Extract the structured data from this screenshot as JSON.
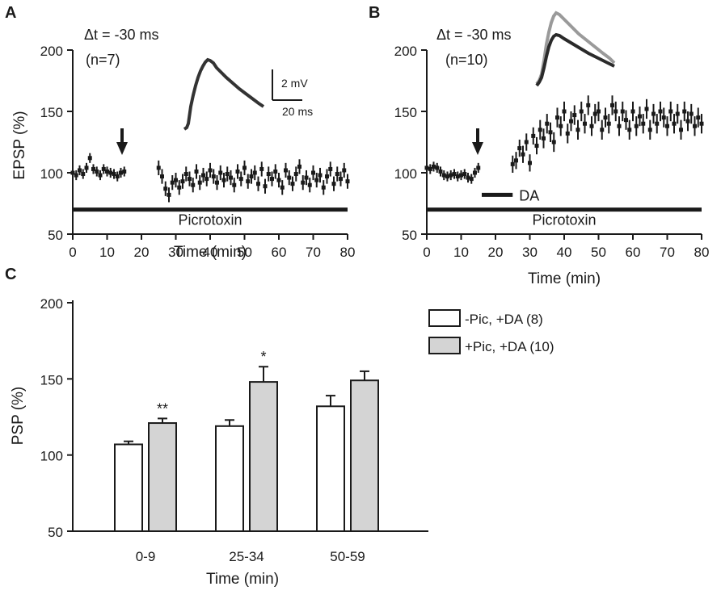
{
  "chart_data": [
    {
      "panel": "A",
      "type": "scatter",
      "title": "Δt = -30 ms",
      "subtitle": "(n=7)",
      "xlabel": "Time (min)",
      "ylabel": "EPSP (%)",
      "xlim": [
        0,
        80
      ],
      "ylim": [
        50,
        200
      ],
      "xticks": [
        0,
        10,
        20,
        30,
        40,
        50,
        60,
        70,
        80
      ],
      "yticks": [
        50,
        100,
        150,
        200
      ],
      "arrow_at_min": 15,
      "bars": [
        {
          "label": "Picrotoxin",
          "from": 0,
          "to": 80,
          "y": 70
        }
      ],
      "scalebar": {
        "v_label": "2 mV",
        "h_label": "20 ms"
      },
      "series": [
        {
          "name": "EPSP",
          "x": [
            0,
            1,
            2,
            3,
            4,
            5,
            6,
            7,
            8,
            9,
            10,
            11,
            12,
            13,
            14,
            15,
            25,
            26,
            27,
            28,
            29,
            30,
            31,
            32,
            33,
            34,
            35,
            36,
            37,
            38,
            39,
            40,
            41,
            42,
            43,
            44,
            45,
            46,
            47,
            48,
            49,
            50,
            51,
            52,
            53,
            54,
            55,
            56,
            57,
            58,
            59,
            60,
            61,
            62,
            63,
            64,
            65,
            66,
            67,
            68,
            69,
            70,
            71,
            72,
            73,
            74,
            75,
            76,
            77,
            78,
            79,
            80
          ],
          "y": [
            100,
            98,
            102,
            99,
            104,
            112,
            103,
            101,
            98,
            103,
            101,
            100,
            99,
            97,
            100,
            101,
            104,
            97,
            87,
            82,
            92,
            94,
            88,
            93,
            99,
            95,
            90,
            101,
            92,
            98,
            95,
            102,
            97,
            92,
            100,
            94,
            99,
            96,
            90,
            101,
            95,
            104,
            93,
            97,
            100,
            91,
            103,
            89,
            99,
            95,
            101,
            94,
            88,
            102,
            96,
            91,
            99,
            105,
            92,
            96,
            90,
            100,
            94,
            98,
            88,
            97,
            103,
            91,
            99,
            95,
            102,
            93
          ],
          "err": [
            4,
            4,
            4,
            4,
            4,
            4,
            4,
            4,
            4,
            4,
            4,
            4,
            4,
            4,
            4,
            4,
            6,
            6,
            6,
            6,
            6,
            6,
            6,
            6,
            6,
            6,
            6,
            6,
            6,
            6,
            6,
            6,
            6,
            6,
            6,
            6,
            6,
            6,
            6,
            6,
            6,
            6,
            6,
            6,
            6,
            6,
            6,
            6,
            6,
            6,
            6,
            6,
            6,
            6,
            6,
            6,
            6,
            6,
            6,
            6,
            6,
            6,
            6,
            6,
            6,
            6,
            6,
            6,
            6,
            6,
            6,
            6
          ]
        }
      ]
    },
    {
      "panel": "B",
      "type": "scatter",
      "title": "Δt = -30 ms",
      "subtitle": "(n=10)",
      "xlabel": "Time (min)",
      "ylabel": "",
      "xlim": [
        0,
        80
      ],
      "ylim": [
        50,
        200
      ],
      "xticks": [
        0,
        10,
        20,
        30,
        40,
        50,
        60,
        70,
        80
      ],
      "yticks": [
        50,
        100,
        150,
        200
      ],
      "arrow_at_min": 15,
      "bars": [
        {
          "label": "DA",
          "from": 16,
          "to": 25,
          "y": 82
        },
        {
          "label": "Picrotoxin",
          "from": 0,
          "to": 80,
          "y": 70
        }
      ],
      "series": [
        {
          "name": "EPSP",
          "x": [
            0,
            1,
            2,
            3,
            4,
            5,
            6,
            7,
            8,
            9,
            10,
            11,
            12,
            13,
            14,
            15,
            25,
            26,
            27,
            28,
            29,
            30,
            31,
            32,
            33,
            34,
            35,
            36,
            37,
            38,
            39,
            40,
            41,
            42,
            43,
            44,
            45,
            46,
            47,
            48,
            49,
            50,
            51,
            52,
            53,
            54,
            55,
            56,
            57,
            58,
            59,
            60,
            61,
            62,
            63,
            64,
            65,
            66,
            67,
            68,
            69,
            70,
            71,
            72,
            73,
            74,
            75,
            76,
            77,
            78,
            79,
            80
          ],
          "y": [
            104,
            103,
            105,
            104,
            101,
            98,
            97,
            98,
            99,
            97,
            98,
            99,
            96,
            95,
            100,
            104,
            107,
            110,
            120,
            115,
            125,
            108,
            130,
            122,
            135,
            128,
            140,
            133,
            125,
            145,
            138,
            150,
            132,
            142,
            147,
            135,
            150,
            140,
            155,
            138,
            148,
            150,
            135,
            145,
            140,
            155,
            150,
            138,
            150,
            143,
            135,
            150,
            138,
            146,
            140,
            152,
            135,
            148,
            140,
            150,
            145,
            138,
            150,
            140,
            148,
            135,
            150,
            142,
            148,
            138,
            145,
            140
          ],
          "err": [
            4,
            4,
            4,
            4,
            4,
            4,
            4,
            4,
            4,
            4,
            4,
            4,
            4,
            4,
            4,
            4,
            7,
            7,
            7,
            7,
            7,
            7,
            7,
            7,
            8,
            8,
            8,
            8,
            8,
            8,
            8,
            8,
            8,
            8,
            8,
            8,
            8,
            8,
            8,
            8,
            8,
            8,
            8,
            8,
            8,
            8,
            8,
            8,
            8,
            8,
            8,
            8,
            8,
            8,
            8,
            8,
            8,
            8,
            8,
            8,
            8,
            8,
            8,
            8,
            8,
            8,
            8,
            8,
            8,
            8,
            8,
            8
          ]
        }
      ]
    },
    {
      "panel": "C",
      "type": "bar",
      "categories": [
        "0-9",
        "25-34",
        "50-59"
      ],
      "xlabel": "Time (min)",
      "ylabel": "PSP (%)",
      "ylim": [
        50,
        200
      ],
      "yticks": [
        50,
        100,
        150,
        200
      ],
      "series": [
        {
          "name": "-Pic, +DA (8)",
          "color": "#ffffff",
          "values": [
            107,
            119,
            132
          ],
          "err": [
            2,
            4,
            7
          ]
        },
        {
          "name": "+Pic, +DA (10)",
          "color": "#d4d4d4",
          "values": [
            121,
            148,
            149
          ],
          "err": [
            3,
            10,
            6
          ]
        }
      ],
      "significance": [
        "**",
        "*",
        ""
      ]
    }
  ]
}
